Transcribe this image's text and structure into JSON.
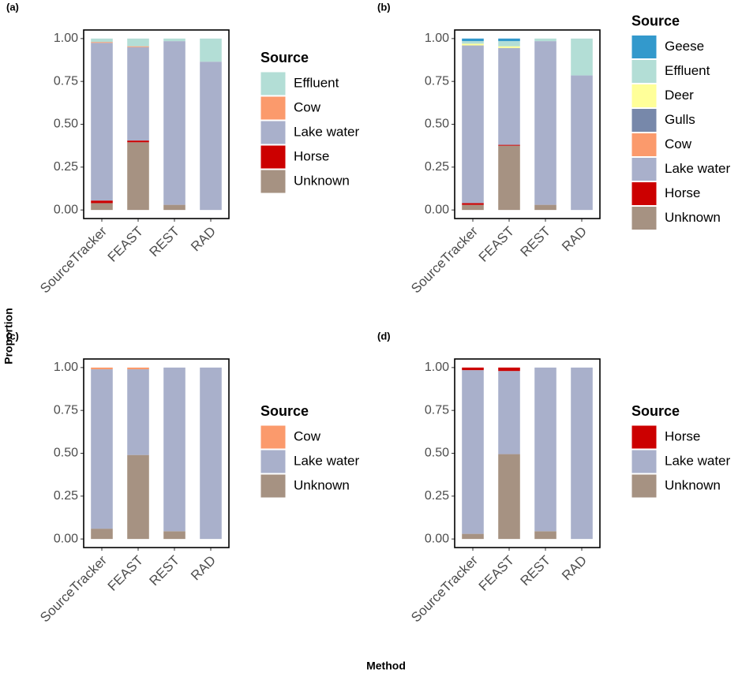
{
  "xlabel": "Method",
  "ylabel": "Proportion",
  "chart_data": [
    {
      "type": "bar",
      "stacked": true,
      "panel": "(a)",
      "legend_title": "Source",
      "categories": [
        "SourceTracker",
        "FEAST",
        "REST",
        "RAD"
      ],
      "ylim": [
        -0.05,
        1.05
      ],
      "yticks": [
        {
          "value": 0,
          "label": "0.00"
        },
        {
          "value": 0.25,
          "label": "0.25"
        },
        {
          "value": 0.5,
          "label": "0.50"
        },
        {
          "value": 0.75,
          "label": "0.75"
        },
        {
          "value": 1,
          "label": "1.00"
        }
      ],
      "series": [
        {
          "name": "Effluent",
          "color": "#b3ded6",
          "values": [
            0.02,
            0.045,
            0.015,
            0.135
          ]
        },
        {
          "name": "Cow",
          "color": "#fb9a6c",
          "values": [
            0.005,
            0.005,
            0,
            0
          ]
        },
        {
          "name": "Lake water",
          "color": "#a9b0cb",
          "values": [
            0.92,
            0.545,
            0.955,
            0.865
          ]
        },
        {
          "name": "Horse",
          "color": "#cc0000",
          "values": [
            0.015,
            0.01,
            0,
            0
          ]
        },
        {
          "name": "Unknown",
          "color": "#a69282",
          "values": [
            0.04,
            0.395,
            0.03,
            0
          ]
        }
      ]
    },
    {
      "type": "bar",
      "stacked": true,
      "panel": "(b)",
      "legend_title": "Source",
      "categories": [
        "SourceTracker",
        "FEAST",
        "REST",
        "RAD"
      ],
      "ylim": [
        -0.05,
        1.05
      ],
      "yticks": [
        {
          "value": 0,
          "label": "0.00"
        },
        {
          "value": 0.25,
          "label": "0.25"
        },
        {
          "value": 0.5,
          "label": "0.50"
        },
        {
          "value": 0.75,
          "label": "0.75"
        },
        {
          "value": 1,
          "label": "1.00"
        }
      ],
      "series": [
        {
          "name": "Geese",
          "color": "#3399cc",
          "values": [
            0.015,
            0.015,
            0,
            0
          ]
        },
        {
          "name": "Effluent",
          "color": "#b3ded6",
          "values": [
            0.015,
            0.03,
            0.015,
            0.215
          ]
        },
        {
          "name": "Deer",
          "color": "#ffff99",
          "values": [
            0.01,
            0.01,
            0,
            0
          ]
        },
        {
          "name": "Gulls",
          "color": "#7788aa",
          "values": [
            0,
            0,
            0,
            0
          ]
        },
        {
          "name": "Cow",
          "color": "#fb9a6c",
          "values": [
            0,
            0,
            0,
            0
          ]
        },
        {
          "name": "Lake water",
          "color": "#a9b0cb",
          "values": [
            0.92,
            0.565,
            0.955,
            0.785
          ]
        },
        {
          "name": "Horse",
          "color": "#cc0000",
          "values": [
            0.01,
            0.005,
            0,
            0
          ]
        },
        {
          "name": "Unknown",
          "color": "#a69282",
          "values": [
            0.03,
            0.375,
            0.03,
            0
          ]
        }
      ]
    },
    {
      "type": "bar",
      "stacked": true,
      "panel": "(c)",
      "legend_title": "Source",
      "categories": [
        "SourceTracker",
        "FEAST",
        "REST",
        "RAD"
      ],
      "ylim": [
        -0.05,
        1.05
      ],
      "yticks": [
        {
          "value": 0,
          "label": "0.00"
        },
        {
          "value": 0.25,
          "label": "0.25"
        },
        {
          "value": 0.5,
          "label": "0.50"
        },
        {
          "value": 0.75,
          "label": "0.75"
        },
        {
          "value": 1,
          "label": "1.00"
        }
      ],
      "series": [
        {
          "name": "Cow",
          "color": "#fb9a6c",
          "values": [
            0.01,
            0.01,
            0,
            0
          ]
        },
        {
          "name": "Lake water",
          "color": "#a9b0cb",
          "values": [
            0.93,
            0.5,
            0.955,
            1
          ]
        },
        {
          "name": "Unknown",
          "color": "#a69282",
          "values": [
            0.06,
            0.49,
            0.045,
            0
          ]
        }
      ]
    },
    {
      "type": "bar",
      "stacked": true,
      "panel": "(d)",
      "legend_title": "Source",
      "categories": [
        "SourceTracker",
        "FEAST",
        "REST",
        "RAD"
      ],
      "ylim": [
        -0.05,
        1.05
      ],
      "yticks": [
        {
          "value": 0,
          "label": "0.00"
        },
        {
          "value": 0.25,
          "label": "0.25"
        },
        {
          "value": 0.5,
          "label": "0.50"
        },
        {
          "value": 0.75,
          "label": "0.75"
        },
        {
          "value": 1,
          "label": "1.00"
        }
      ],
      "series": [
        {
          "name": "Horse",
          "color": "#cc0000",
          "values": [
            0.015,
            0.02,
            0,
            0
          ]
        },
        {
          "name": "Lake water",
          "color": "#a9b0cb",
          "values": [
            0.955,
            0.485,
            0.955,
            1
          ]
        },
        {
          "name": "Unknown",
          "color": "#a69282",
          "values": [
            0.03,
            0.495,
            0.045,
            0
          ]
        }
      ]
    }
  ]
}
